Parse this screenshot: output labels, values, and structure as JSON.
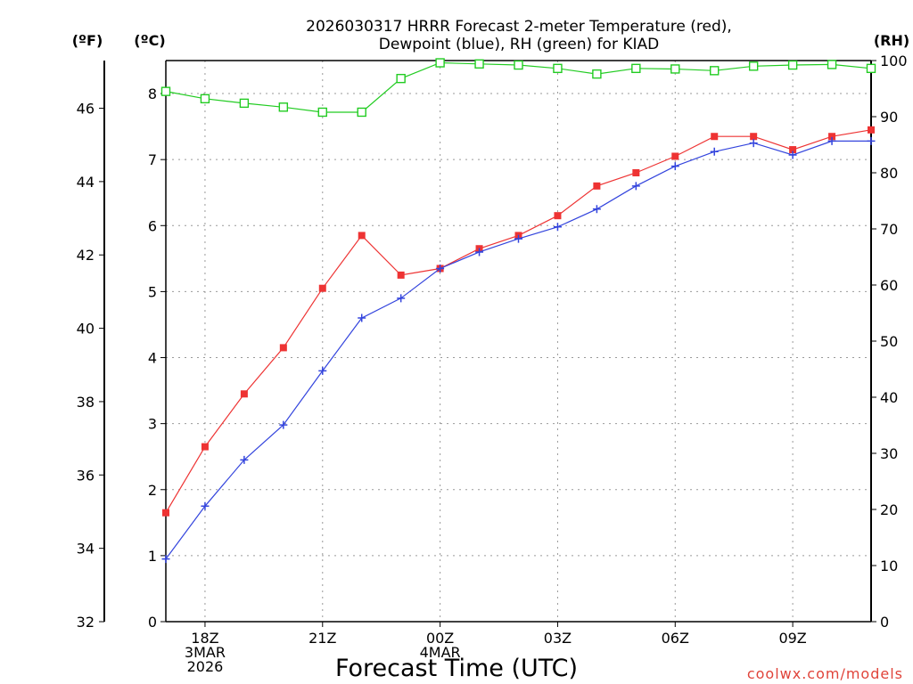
{
  "chart_data": {
    "type": "line",
    "title_line1": "2026030317 HRRR Forecast 2-meter Temperature (red),",
    "title_line2": "Dewpoint (blue), RH (green) for KIAD",
    "unit_f": "(ºF)",
    "unit_c": "(ºC)",
    "unit_rh": "(RH)",
    "xlabel": "Forecast Time (UTC)",
    "credit": "coolwx.com/models",
    "x_ticks": [
      {
        "hour": 1,
        "lines": [
          "18Z",
          "3MAR",
          "2026"
        ]
      },
      {
        "hour": 4,
        "lines": [
          "21Z"
        ]
      },
      {
        "hour": 7,
        "lines": [
          "00Z",
          "4MAR"
        ]
      },
      {
        "hour": 10,
        "lines": [
          "03Z"
        ]
      },
      {
        "hour": 13,
        "lines": [
          "06Z"
        ]
      },
      {
        "hour": 16,
        "lines": [
          "09Z"
        ]
      }
    ],
    "x_range": [
      0,
      18
    ],
    "y_left_c": {
      "range": [
        0,
        8.5
      ],
      "ticks": [
        "0",
        "1",
        "2",
        "3",
        "4",
        "5",
        "6",
        "7",
        "8"
      ]
    },
    "y_left_f": {
      "range": [
        32,
        47.3
      ],
      "ticks": [
        "32",
        "34",
        "36",
        "38",
        "40",
        "42",
        "44",
        "46"
      ]
    },
    "y_right_rh": {
      "range": [
        0,
        100
      ],
      "ticks": [
        "0",
        "10",
        "20",
        "30",
        "40",
        "50",
        "60",
        "70",
        "80",
        "90",
        "100"
      ]
    },
    "series": [
      {
        "name": "Temperature",
        "axis": "celsius",
        "color": "#ee3333",
        "marker": "filled-square",
        "x": [
          0,
          1,
          2,
          3,
          4,
          5,
          6,
          7,
          8,
          9,
          10,
          11,
          12,
          13,
          14,
          15,
          16,
          17,
          18
        ],
        "values": [
          1.65,
          2.65,
          3.45,
          4.15,
          5.05,
          5.85,
          5.25,
          5.35,
          5.65,
          5.85,
          6.15,
          6.6,
          6.8,
          7.05,
          7.35,
          7.35,
          7.15,
          7.35,
          7.45
        ]
      },
      {
        "name": "Dewpoint",
        "axis": "celsius",
        "color": "#3344dd",
        "marker": "plus",
        "x": [
          0,
          1,
          2,
          3,
          4,
          5,
          6,
          7,
          8,
          9,
          10,
          11,
          12,
          13,
          14,
          15,
          16,
          17,
          18
        ],
        "values": [
          0.95,
          1.75,
          2.45,
          2.98,
          3.8,
          4.6,
          4.9,
          5.35,
          5.6,
          5.8,
          5.98,
          6.25,
          6.6,
          6.9,
          7.12,
          7.25,
          7.07,
          7.28,
          7.28
        ]
      },
      {
        "name": "RH",
        "axis": "rh",
        "color": "#22cc22",
        "marker": "open-square",
        "x": [
          0,
          1,
          2,
          3,
          4,
          5,
          6,
          7,
          8,
          9,
          10,
          11,
          12,
          13,
          14,
          15,
          16,
          17,
          18
        ],
        "values": [
          94.5,
          93.2,
          92.4,
          91.7,
          90.8,
          90.8,
          96.8,
          99.6,
          99.4,
          99.2,
          98.6,
          97.6,
          98.6,
          98.5,
          98.2,
          99.0,
          99.2,
          99.3,
          98.6
        ]
      }
    ]
  }
}
